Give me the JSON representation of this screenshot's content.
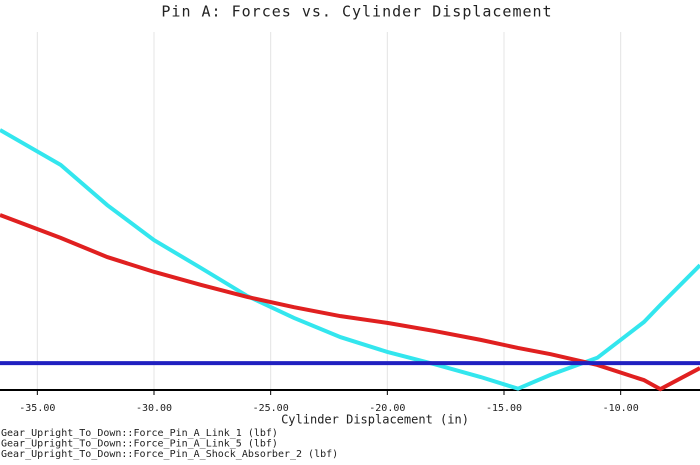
{
  "chart_data": {
    "type": "line",
    "title": "Pin A: Forces vs. Cylinder Displacement",
    "x_label": "Cylinder Displacement (in)",
    "x": [
      -36.6,
      -34,
      -32,
      -30,
      -28,
      -26,
      -24,
      -22,
      -20,
      -18,
      -16,
      -14.4,
      -13,
      -11,
      -9,
      -8.3,
      -6.6
    ],
    "series": [
      {
        "name": "Gear_Upright_To_Down::Force_Pin_A_Link_1 (lbf)",
        "color": "#33e6ee",
        "values": [
          5.81,
          5.03,
          4.13,
          3.35,
          2.73,
          2.1,
          1.61,
          1.18,
          0.85,
          0.58,
          0.29,
          0.03,
          0.34,
          0.72,
          1.52,
          1.9,
          2.79
        ]
      },
      {
        "name": "Gear_Upright_To_Down::Force_Pin_A_Link_5 (lbf)",
        "color": "#e02020",
        "values": [
          3.91,
          3.4,
          2.97,
          2.64,
          2.35,
          2.08,
          1.85,
          1.65,
          1.5,
          1.32,
          1.12,
          0.94,
          0.8,
          0.56,
          0.22,
          0.02,
          0.49
        ]
      },
      {
        "name": "Gear_Upright_To_Down::Force_Pin_A_Shock_Absorber_2 (lbf)",
        "color": "#2020c0",
        "values": [
          0.6,
          0.6,
          0.6,
          0.6,
          0.6,
          0.6,
          0.6,
          0.6,
          0.6,
          0.6,
          0.6,
          0.6,
          0.6,
          0.6,
          0.6,
          0.6,
          0.6
        ]
      }
    ],
    "xlim": [
      -36.6,
      -6.6
    ],
    "xticks": [
      {
        "value": -35,
        "label": "-35.00"
      },
      {
        "value": -30,
        "label": "-30.00"
      },
      {
        "value": -25,
        "label": "-25.00"
      },
      {
        "value": -20,
        "label": "-20.00"
      },
      {
        "value": -15,
        "label": "-15.00"
      },
      {
        "value": -10,
        "label": "-10.00"
      }
    ],
    "ylim": [
      0,
      8
    ],
    "grid": true
  }
}
